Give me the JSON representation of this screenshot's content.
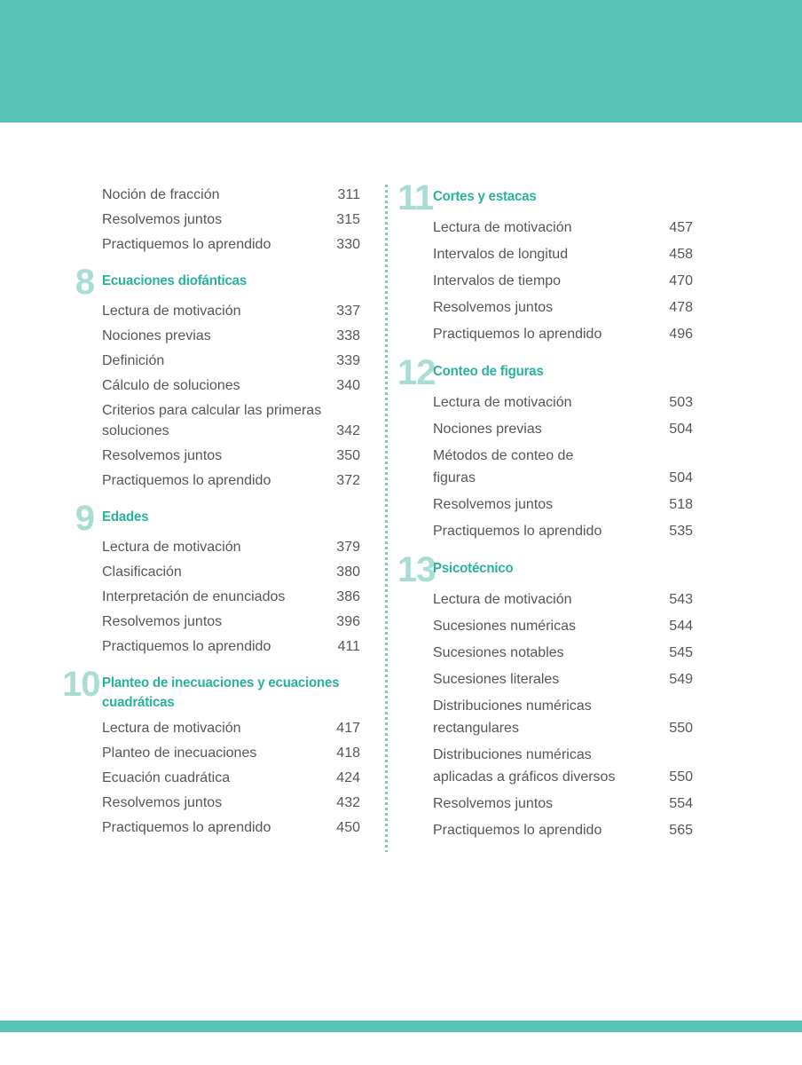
{
  "theme": {
    "band_color": "#57c3b4",
    "chapter_title_color": "#29b29d",
    "chapter_number_color": "#a8ddd4",
    "entry_text_color": "#55575b",
    "divider_dot_color": "#79cec1"
  },
  "toc": {
    "left_column": {
      "intro_entries": [
        {
          "label": "Noción de fracción",
          "page": "311"
        },
        {
          "label": "Resolvemos juntos",
          "page": "315"
        },
        {
          "label": "Practiquemos lo aprendido",
          "page": "330"
        }
      ],
      "chapters": [
        {
          "number": "8",
          "title": "Ecuaciones diofánticas",
          "entries": [
            {
              "label": "Lectura de motivación",
              "page": "337"
            },
            {
              "label": "Nociones previas",
              "page": "338"
            },
            {
              "label": "Definición",
              "page": "339"
            },
            {
              "label": "Cálculo de soluciones",
              "page": "340"
            },
            {
              "label": "Criterios para calcular las primeras\nsoluciones",
              "page": "342"
            },
            {
              "label": "Resolvemos juntos",
              "page": "350"
            },
            {
              "label": "Practiquemos lo aprendido",
              "page": "372"
            }
          ]
        },
        {
          "number": "9",
          "title": "Edades",
          "entries": [
            {
              "label": "Lectura de motivación",
              "page": "379"
            },
            {
              "label": "Clasificación",
              "page": "380"
            },
            {
              "label": "Interpretación de enunciados",
              "page": "386"
            },
            {
              "label": "Resolvemos juntos",
              "page": "396"
            },
            {
              "label": "Practiquemos lo aprendido",
              "page": "411"
            }
          ]
        },
        {
          "number": "10",
          "title": "Planteo de inecuaciones y ecuaciones\ncuadráticas",
          "entries": [
            {
              "label": "Lectura de motivación",
              "page": "417"
            },
            {
              "label": "Planteo de inecuaciones",
              "page": "418"
            },
            {
              "label": "Ecuación cuadrática",
              "page": "424"
            },
            {
              "label": "Resolvemos juntos",
              "page": "432"
            },
            {
              "label": "Practiquemos lo aprendido",
              "page": "450"
            }
          ]
        }
      ]
    },
    "right_column": {
      "chapters": [
        {
          "number": "11",
          "title": "Cortes y estacas",
          "entries": [
            {
              "label": "Lectura de motivación",
              "page": "457"
            },
            {
              "label": "Intervalos de longitud",
              "page": "458"
            },
            {
              "label": "Intervalos de tiempo",
              "page": "470"
            },
            {
              "label": "Resolvemos juntos",
              "page": "478"
            },
            {
              "label": "Practiquemos lo aprendido",
              "page": "496"
            }
          ]
        },
        {
          "number": "12",
          "title": "Conteo de figuras",
          "entries": [
            {
              "label": "Lectura de motivación",
              "page": "503"
            },
            {
              "label": "Nociones previas",
              "page": "504"
            },
            {
              "label": "Métodos de conteo de\nfiguras",
              "page": "504"
            },
            {
              "label": "Resolvemos juntos",
              "page": "518"
            },
            {
              "label": "Practiquemos lo aprendido",
              "page": "535"
            }
          ]
        },
        {
          "number": "13",
          "title": "Psicotécnico",
          "entries": [
            {
              "label": "Lectura de motivación",
              "page": "543"
            },
            {
              "label": "Sucesiones numéricas",
              "page": "544"
            },
            {
              "label": "Sucesiones notables",
              "page": "545"
            },
            {
              "label": "Sucesiones literales",
              "page": "549"
            },
            {
              "label": "Distribuciones numéricas\nrectangulares",
              "page": "550"
            },
            {
              "label": "Distribuciones numéricas\naplicadas a gráficos diversos",
              "page": "550"
            },
            {
              "label": "Resolvemos juntos",
              "page": "554"
            },
            {
              "label": "Practiquemos lo aprendido",
              "page": "565"
            }
          ]
        }
      ]
    }
  }
}
